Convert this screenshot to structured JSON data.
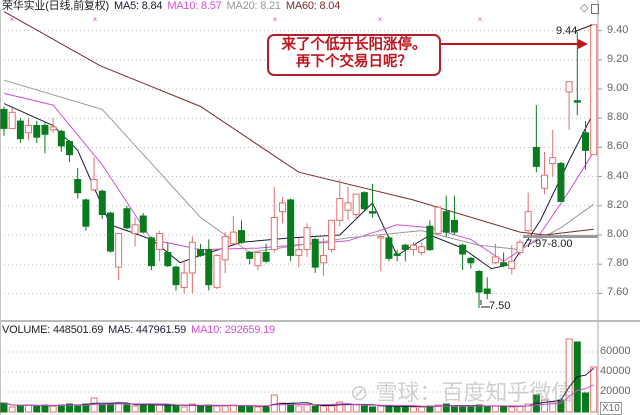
{
  "header": {
    "stock_title": "荣华实业(日线,前复权)",
    "ma5": "MA5: 8.84",
    "ma10": "MA10: 8.57",
    "ma20": "MA20: 8.21",
    "ma60": "MA60: 8.04"
  },
  "volume_header": {
    "volume": "VOLUME: 448501.69",
    "ma5": "MA5: 447961.59",
    "ma10": "MA10: 292659.19"
  },
  "annotation": {
    "line1": "来了个低开长阳涨停。",
    "line2": "再下个交易日呢？",
    "color": "#c0141e"
  },
  "labels": {
    "high": "9.44",
    "low": "7.50",
    "range": "7.97-8.00"
  },
  "watermark": "雪球：百度知乎微信",
  "colors": {
    "up": "#e07070",
    "down": "#0a7a1e",
    "ma5": "#1a1a3a",
    "ma10": "#d24fd6",
    "ma20": "#999999",
    "ma60": "#7a2a2a"
  },
  "chart_data": {
    "type": "candlestick",
    "price_axis": {
      "ticks": [
        "7.60",
        "7.80",
        "8.00",
        "8.20",
        "8.40",
        "8.60",
        "8.80",
        "9.00",
        "9.20",
        "9.40"
      ],
      "range": [
        7.42,
        9.54
      ]
    },
    "volume_axis": {
      "ticks": [
        "20000",
        "40000",
        "60000"
      ],
      "multiplier": "X10",
      "range": [
        0,
        80000
      ]
    },
    "grid": true,
    "candles_ohlc": [
      [
        8.86,
        8.88,
        8.68,
        8.73
      ],
      [
        8.73,
        8.87,
        8.73,
        8.84
      ],
      [
        8.78,
        8.8,
        8.63,
        8.66
      ],
      [
        8.7,
        8.8,
        8.65,
        8.75
      ],
      [
        8.75,
        8.78,
        8.63,
        8.67
      ],
      [
        8.75,
        8.77,
        8.56,
        8.69
      ],
      [
        8.72,
        8.8,
        8.7,
        8.74
      ],
      [
        8.71,
        8.72,
        8.57,
        8.61
      ],
      [
        8.64,
        8.65,
        8.5,
        8.55
      ],
      [
        8.38,
        8.46,
        8.25,
        8.29
      ],
      [
        8.24,
        8.25,
        8.03,
        8.06
      ],
      [
        8.31,
        8.53,
        8.3,
        8.38
      ],
      [
        8.3,
        8.31,
        8.11,
        8.14
      ],
      [
        8.15,
        8.16,
        7.88,
        7.89
      ],
      [
        7.78,
        8.01,
        7.69,
        8.01
      ],
      [
        8.18,
        8.2,
        8.04,
        8.05
      ],
      [
        8.01,
        8.12,
        7.92,
        8.07
      ],
      [
        8.13,
        8.15,
        8.01,
        8.02
      ],
      [
        7.98,
        7.99,
        7.76,
        7.79
      ],
      [
        7.9,
        8.03,
        7.82,
        8.01
      ],
      [
        7.88,
        7.95,
        7.78,
        7.79
      ],
      [
        7.78,
        7.79,
        7.62,
        7.66
      ],
      [
        7.64,
        7.82,
        7.6,
        7.74
      ],
      [
        7.74,
        7.99,
        7.6,
        7.95
      ],
      [
        7.9,
        7.94,
        7.85,
        7.86
      ],
      [
        7.9,
        7.97,
        7.62,
        7.66
      ],
      [
        7.64,
        7.87,
        7.63,
        7.86
      ],
      [
        7.83,
        8.02,
        7.74,
        7.99
      ],
      [
        7.94,
        8.13,
        7.94,
        8.02
      ],
      [
        8.03,
        8.1,
        7.94,
        7.95
      ],
      [
        7.88,
        7.89,
        7.8,
        7.84
      ],
      [
        7.79,
        7.88,
        7.76,
        7.88
      ],
      [
        7.88,
        7.94,
        7.81,
        7.82
      ],
      [
        7.9,
        8.33,
        7.88,
        8.12
      ],
      [
        8.16,
        8.26,
        8.08,
        8.22
      ],
      [
        8.24,
        8.25,
        7.82,
        7.86
      ],
      [
        7.86,
        7.98,
        7.78,
        7.9
      ],
      [
        7.9,
        8.08,
        7.85,
        8.05
      ],
      [
        7.97,
        7.98,
        7.74,
        7.78
      ],
      [
        7.81,
        7.98,
        7.72,
        7.86
      ],
      [
        7.9,
        8.1,
        7.88,
        8.1
      ],
      [
        8.1,
        8.38,
        8.06,
        8.25
      ],
      [
        8.17,
        8.33,
        8.1,
        8.22
      ],
      [
        8.14,
        8.28,
        8.1,
        8.28
      ],
      [
        8.29,
        8.3,
        8.16,
        8.18
      ],
      [
        8.16,
        8.35,
        8.12,
        8.15
      ],
      [
        7.98,
        8.0,
        7.75,
        7.99
      ],
      [
        7.98,
        7.99,
        7.82,
        7.84
      ],
      [
        7.87,
        7.9,
        7.82,
        7.86
      ],
      [
        7.93,
        7.94,
        7.82,
        7.9
      ],
      [
        7.9,
        7.95,
        7.86,
        7.93
      ],
      [
        7.88,
        7.95,
        7.86,
        7.92
      ],
      [
        8.06,
        8.1,
        7.89,
        7.9
      ],
      [
        8.01,
        8.2,
        8.0,
        8.19
      ],
      [
        8.16,
        8.27,
        7.99,
        8.02
      ],
      [
        8.1,
        8.27,
        8.0,
        8.02
      ],
      [
        7.93,
        7.94,
        7.76,
        7.87
      ],
      [
        7.84,
        7.85,
        7.77,
        7.81
      ],
      [
        7.75,
        7.76,
        7.5,
        7.61
      ],
      [
        7.63,
        7.71,
        7.56,
        7.6
      ],
      [
        7.81,
        7.94,
        7.8,
        7.85
      ],
      [
        7.81,
        7.88,
        7.78,
        7.79
      ],
      [
        7.77,
        7.93,
        7.73,
        7.82
      ],
      [
        7.88,
        7.97,
        7.86,
        7.95
      ],
      [
        8.03,
        8.29,
        8.0,
        8.16
      ],
      [
        8.6,
        8.89,
        8.43,
        8.47
      ],
      [
        8.32,
        8.57,
        8.28,
        8.41
      ],
      [
        8.49,
        8.72,
        8.4,
        8.53
      ],
      [
        8.49,
        8.5,
        8.23,
        8.23
      ],
      [
        8.98,
        9.05,
        8.72,
        9.05
      ],
      [
        8.92,
        9.39,
        8.82,
        8.91
      ],
      [
        8.7,
        8.78,
        8.45,
        8.58
      ],
      [
        8.55,
        9.44,
        8.55,
        9.44
      ]
    ],
    "volume": [
      9000,
      5000,
      6000,
      7000,
      6000,
      7000,
      6000,
      7000,
      8000,
      7000,
      8000,
      14000,
      7000,
      8000,
      9000,
      7000,
      6000,
      7000,
      8000,
      7000,
      7000,
      6000,
      5000,
      8000,
      6000,
      7000,
      6000,
      6000,
      7000,
      6000,
      6000,
      5000,
      5000,
      17000,
      9000,
      8000,
      6000,
      7000,
      6000,
      6000,
      7000,
      10000,
      8000,
      7000,
      6000,
      5000,
      6000,
      6000,
      5000,
      6000,
      5000,
      5000,
      6000,
      7000,
      8000,
      6000,
      5000,
      6000,
      7000,
      6000,
      6000,
      5000,
      5000,
      6000,
      8000,
      17000,
      12000,
      10000,
      12000,
      73000,
      70000,
      19000,
      45000
    ],
    "ma_lines": {
      "MA5": [
        [
          0,
          8.9
        ],
        [
          6,
          8.75
        ],
        [
          9,
          8.58
        ],
        [
          13,
          8.07
        ],
        [
          18,
          7.97
        ],
        [
          21.5,
          7.81
        ],
        [
          24,
          7.86
        ],
        [
          29,
          7.95
        ],
        [
          35,
          7.98
        ],
        [
          41,
          8.0
        ],
        [
          45,
          8.22
        ],
        [
          48,
          7.86
        ],
        [
          52,
          8.0
        ],
        [
          56,
          7.91
        ],
        [
          59.5,
          7.77
        ],
        [
          62,
          7.8
        ],
        [
          65.5,
          8.1
        ],
        [
          69,
          8.51
        ],
        [
          72,
          8.84
        ]
      ],
      "MA10": [
        [
          0,
          8.97
        ],
        [
          6,
          8.89
        ],
        [
          12,
          8.48
        ],
        [
          18,
          7.97
        ],
        [
          24,
          7.9
        ],
        [
          31,
          7.91
        ],
        [
          42,
          7.96
        ],
        [
          48,
          8.07
        ],
        [
          52,
          8.05
        ],
        [
          57,
          7.97
        ],
        [
          61,
          7.82
        ],
        [
          65,
          7.97
        ],
        [
          69,
          8.3
        ],
        [
          72,
          8.57
        ]
      ],
      "MA20": [
        [
          0,
          9.06
        ],
        [
          12,
          8.86
        ],
        [
          24,
          8.12
        ],
        [
          30,
          7.88
        ],
        [
          42,
          7.98
        ],
        [
          51,
          8.03
        ],
        [
          58,
          7.93
        ],
        [
          63,
          7.9
        ],
        [
          68,
          8.05
        ],
        [
          72,
          8.21
        ]
      ],
      "MA60": [
        [
          0,
          9.53
        ],
        [
          11.7,
          9.16
        ],
        [
          24,
          8.88
        ],
        [
          36,
          8.43
        ],
        [
          50,
          8.24
        ],
        [
          63,
          8.02
        ],
        [
          66,
          8.0
        ],
        [
          72,
          8.04
        ]
      ]
    },
    "support_level": 7.99
  }
}
